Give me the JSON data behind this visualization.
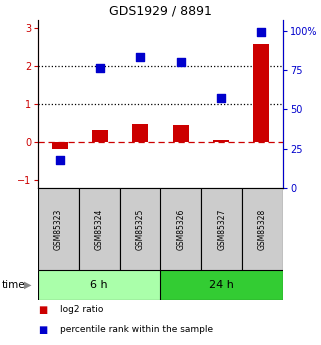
{
  "title": "GDS1929 / 8891",
  "samples": [
    "GSM85323",
    "GSM85324",
    "GSM85325",
    "GSM85326",
    "GSM85327",
    "GSM85328"
  ],
  "log2_ratio": [
    -0.18,
    0.33,
    0.48,
    0.46,
    0.07,
    2.57
  ],
  "percentile_rank": [
    18,
    76,
    83,
    80,
    57,
    99
  ],
  "groups": [
    {
      "label": "6 h",
      "indices": [
        0,
        1,
        2
      ],
      "color": "#aaffaa"
    },
    {
      "label": "24 h",
      "indices": [
        3,
        4,
        5
      ],
      "color": "#33cc33"
    }
  ],
  "bar_color": "#cc0000",
  "dot_color": "#0000cc",
  "ylim_left": [
    -1.2,
    3.2
  ],
  "ylim_right": [
    0,
    106.67
  ],
  "yticks_left": [
    -1,
    0,
    1,
    2,
    3
  ],
  "yticks_right": [
    0,
    25,
    50,
    75,
    100
  ],
  "ytick_labels_right": [
    "0",
    "25",
    "50",
    "75",
    "100%"
  ],
  "hlines_dotted": [
    1,
    2
  ],
  "hline_dashed": 0,
  "bar_width": 0.4,
  "dot_size": 35,
  "legend_items": [
    {
      "label": "log2 ratio",
      "color": "#cc0000"
    },
    {
      "label": "percentile rank within the sample",
      "color": "#0000cc"
    }
  ],
  "sample_box_color": "#cccccc",
  "time_label": "time"
}
